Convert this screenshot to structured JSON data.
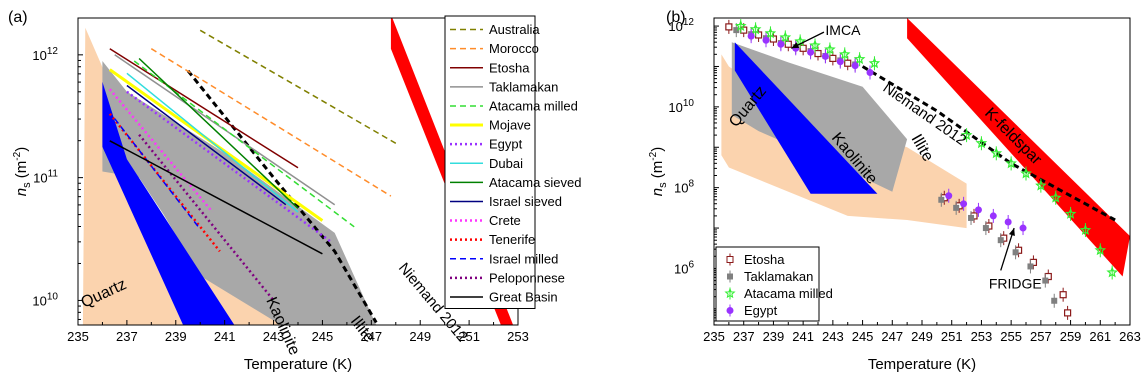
{
  "chart_data": [
    {
      "type": "line",
      "panel_label": "(a)",
      "xlabel": "Temperature (K)",
      "ylabel_main": "n",
      "ylabel_sub": "s",
      "ylabel_unit": "(m",
      "ylabel_exp": "-2",
      "ylabel_close": ")",
      "xlim": [
        235,
        253
      ],
      "ylim_log10": [
        9.8,
        12.3
      ],
      "x_ticks": [
        "235",
        "237",
        "239",
        "241",
        "243",
        "245",
        "247",
        "249",
        "251",
        "253"
      ],
      "y_ticks": [
        {
          "label": "10",
          "exp": "10",
          "value": 10
        },
        {
          "label": "10",
          "exp": "11",
          "value": 11
        },
        {
          "label": "10",
          "exp": "12",
          "value": 12
        }
      ],
      "regions": [
        {
          "name": "Quartz",
          "color": "#fbd3ae",
          "label": "Quartz",
          "polygon": [
            [
              235.2,
              9.8
            ],
            [
              235.3,
              12.22
            ],
            [
              236.0,
              11.9
            ],
            [
              236.5,
              11.1
            ],
            [
              238.5,
              10.3
            ],
            [
              242.0,
              10.2
            ],
            [
              245.5,
              9.95
            ],
            [
              246.8,
              9.8
            ]
          ]
        },
        {
          "name": "Illite",
          "color": "#a8a8a8",
          "label": "Illite",
          "polygon": [
            [
              236.0,
              11.95
            ],
            [
              237.0,
              11.7
            ],
            [
              241.0,
              11.2
            ],
            [
              245.5,
              10.55
            ],
            [
              247.2,
              9.8
            ],
            [
              243.3,
              9.8
            ],
            [
              240.0,
              10.2
            ],
            [
              238.5,
              10.7
            ],
            [
              237.5,
              11.0
            ],
            [
              236.0,
              11.05
            ]
          ]
        },
        {
          "name": "Kaolinite",
          "color": "#0000ff",
          "label": "Kaolinite",
          "polygon": [
            [
              236.0,
              11.78
            ],
            [
              237.0,
              11.15
            ],
            [
              241.4,
              9.8
            ],
            [
              239.3,
              9.8
            ],
            [
              236.0,
              11.25
            ]
          ]
        },
        {
          "name": "K-feldspar",
          "color": "#ff0000",
          "label": "K-feldspar",
          "polygon": [
            [
              247.8,
              12.33
            ],
            [
              252.8,
              9.8
            ],
            [
              252.3,
              9.8
            ],
            [
              247.8,
              12.05
            ]
          ]
        }
      ],
      "niemand": {
        "label": "Niemand 2012",
        "points": [
          [
            239.5,
            11.87
          ],
          [
            243.0,
            11.0
          ],
          [
            245.5,
            10.4
          ],
          [
            247.2,
            9.82
          ]
        ]
      },
      "series": [
        {
          "name": "Australia",
          "color": "#808000",
          "dash": "6,4",
          "width": 1.5,
          "points": [
            [
              240,
              12.2
            ],
            [
              248,
              11.28
            ]
          ]
        },
        {
          "name": "Morocco",
          "color": "#ff8c2a",
          "dash": "6,4",
          "width": 1.5,
          "points": [
            [
              238,
              12.05
            ],
            [
              247.8,
              10.85
            ]
          ]
        },
        {
          "name": "Etosha",
          "color": "#800000",
          "dash": "",
          "width": 1.5,
          "points": [
            [
              236.3,
              12.05
            ],
            [
              244,
              11.08
            ]
          ]
        },
        {
          "name": "Taklamakan",
          "color": "#909090",
          "dash": "",
          "width": 1.5,
          "points": [
            [
              236.5,
              12.0
            ],
            [
              245.5,
              10.78
            ]
          ]
        },
        {
          "name": "Atacama milled",
          "color": "#33dd33",
          "dash": "6,4",
          "width": 1.5,
          "points": [
            [
              237.3,
              11.95
            ],
            [
              246.3,
              10.6
            ]
          ]
        },
        {
          "name": "Mojave",
          "color": "#ffff00",
          "dash": "",
          "width": 3,
          "points": [
            [
              236.3,
              11.88
            ],
            [
              245,
              10.65
            ]
          ]
        },
        {
          "name": "Egypt",
          "color": "#9933ff",
          "dash": "2,3",
          "width": 2.5,
          "points": [
            [
              237,
              11.7
            ],
            [
              245.4,
              10.47
            ]
          ]
        },
        {
          "name": "Dubai",
          "color": "#33dddd",
          "dash": "",
          "width": 1.5,
          "points": [
            [
              237,
              11.85
            ],
            [
              244,
              10.72
            ]
          ]
        },
        {
          "name": "Atacama sieved",
          "color": "#008000",
          "dash": "",
          "width": 1.5,
          "points": [
            [
              237.5,
              11.97
            ],
            [
              244,
              10.75
            ]
          ]
        },
        {
          "name": "Israel sieved",
          "color": "#000080",
          "dash": "",
          "width": 1.5,
          "points": [
            [
              237,
              11.75
            ],
            [
              243.5,
              10.78
            ]
          ]
        },
        {
          "name": "Crete",
          "color": "#ff33ff",
          "dash": "2,3",
          "width": 2.5,
          "points": [
            [
              236.3,
              11.72
            ],
            [
              240.5,
              10.72
            ]
          ]
        },
        {
          "name": "Tenerife",
          "color": "#ff0000",
          "dash": "2,3",
          "width": 2.5,
          "points": [
            [
              236.3,
              11.52
            ],
            [
              240.8,
              10.4
            ]
          ]
        },
        {
          "name": "Israel milled",
          "color": "#0000ff",
          "dash": "6,4",
          "width": 1.5,
          "points": [
            [
              236.5,
              11.48
            ],
            [
              240,
              10.58
            ]
          ]
        },
        {
          "name": "Peloponnese",
          "color": "#800080",
          "dash": "2,3",
          "width": 2.5,
          "points": [
            [
              237.5,
              11.35
            ],
            [
              243,
              10.0
            ]
          ]
        },
        {
          "name": "Great Basin",
          "color": "#000000",
          "dash": "",
          "width": 1.5,
          "points": [
            [
              236.3,
              11.3
            ],
            [
              245,
              10.38
            ]
          ]
        }
      ]
    },
    {
      "type": "scatter",
      "panel_label": "(b)",
      "xlabel": "Temperature (K)",
      "ylabel_main": "n",
      "ylabel_sub": "s",
      "ylabel_unit": "(m",
      "ylabel_exp": "-2",
      "ylabel_close": ")",
      "xlim": [
        235,
        263
      ],
      "ylim_log10": [
        4.6,
        12.2
      ],
      "x_ticks": [
        "235",
        "237",
        "239",
        "241",
        "243",
        "245",
        "247",
        "249",
        "251",
        "253",
        "255",
        "257",
        "259",
        "261",
        "263"
      ],
      "y_ticks": [
        {
          "label": "10",
          "exp": "6",
          "value": 6
        },
        {
          "label": "10",
          "exp": "8",
          "value": 8
        },
        {
          "label": "10",
          "exp": "10",
          "value": 10
        },
        {
          "label": "10",
          "exp": "12",
          "value": 12
        }
      ],
      "regions": [
        {
          "name": "Quartz",
          "color": "#fbd3ae",
          "label": "Quartz",
          "polygon": [
            [
              235.5,
              11.3
            ],
            [
              236.0,
              11.0
            ],
            [
              240.0,
              10.0
            ],
            [
              248.0,
              9.0
            ],
            [
              252.0,
              8.1
            ],
            [
              252.0,
              7.0
            ],
            [
              248.0,
              7.2
            ],
            [
              244.0,
              7.3
            ],
            [
              236.0,
              8.5
            ],
            [
              235.5,
              8.8
            ]
          ]
        },
        {
          "name": "Illite",
          "color": "#a8a8a8",
          "label": "Illite",
          "polygon": [
            [
              236.2,
              11.6
            ],
            [
              240.0,
              11.1
            ],
            [
              245.0,
              10.5
            ],
            [
              248.0,
              9.2
            ],
            [
              247.0,
              7.9
            ],
            [
              243.0,
              8.6
            ],
            [
              238.0,
              9.4
            ],
            [
              236.2,
              9.8
            ]
          ]
        },
        {
          "name": "Kaolinite",
          "color": "#0000ff",
          "label": "Kaolinite",
          "polygon": [
            [
              236.4,
              11.6
            ],
            [
              246.0,
              7.85
            ],
            [
              241.5,
              7.85
            ],
            [
              236.4,
              10.9
            ]
          ]
        },
        {
          "name": "K-feldspar",
          "color": "#ff0000",
          "label": "K-feldspar",
          "polygon": [
            [
              248.0,
              12.2
            ],
            [
              263.0,
              6.8
            ],
            [
              262.5,
              5.8
            ],
            [
              248.0,
              11.7
            ]
          ]
        }
      ],
      "niemand": {
        "label": "Niemand 2012",
        "points": [
          [
            245,
            11.0
          ],
          [
            250,
            9.9
          ],
          [
            255,
            8.6
          ],
          [
            262,
            7.2
          ]
        ]
      },
      "annotations": [
        {
          "text": "IMCA",
          "at": [
            242.5,
            11.78
          ],
          "arrow_from": [
            242.4,
            11.85
          ],
          "arrow_to": [
            240.2,
            11.45
          ]
        },
        {
          "text": "FRIDGE",
          "at": [
            253.5,
            5.5
          ],
          "arrow_from": [
            254.3,
            5.95
          ],
          "arrow_to": [
            255.2,
            7.0
          ]
        }
      ],
      "series": [
        {
          "name": "Etosha",
          "color": "#8b1a1a",
          "marker": "square-open",
          "points": [
            [
              236,
              11.98
            ],
            [
              237,
              11.9
            ],
            [
              238,
              11.78
            ],
            [
              239,
              11.68
            ],
            [
              240,
              11.55
            ],
            [
              241,
              11.45
            ],
            [
              242,
              11.32
            ],
            [
              243,
              11.2
            ],
            [
              244,
              11.08
            ],
            [
              250.5,
              7.75
            ],
            [
              251.5,
              7.55
            ],
            [
              252.5,
              7.3
            ],
            [
              253.5,
              7.05
            ],
            [
              254.5,
              6.75
            ],
            [
              255.5,
              6.45
            ],
            [
              256.5,
              6.15
            ],
            [
              257.5,
              5.8
            ],
            [
              258.5,
              5.35
            ],
            [
              258.8,
              4.9
            ]
          ]
        },
        {
          "name": "Taklamakan",
          "color": "#808080",
          "marker": "square",
          "points": [
            [
              236.5,
              11.9
            ],
            [
              237.5,
              11.8
            ],
            [
              238.5,
              11.7
            ],
            [
              239.5,
              11.58
            ],
            [
              240.5,
              11.48
            ],
            [
              241.5,
              11.38
            ],
            [
              242.5,
              11.26
            ],
            [
              243.5,
              11.15
            ],
            [
              244.5,
              11.05
            ],
            [
              250.3,
              7.7
            ],
            [
              251.3,
              7.5
            ],
            [
              252.3,
              7.25
            ],
            [
              253.3,
              7.0
            ],
            [
              254.3,
              6.7
            ],
            [
              255.3,
              6.4
            ],
            [
              256.3,
              6.05
            ],
            [
              257.3,
              5.7
            ],
            [
              257.9,
              5.2
            ]
          ]
        },
        {
          "name": "Atacama milled",
          "color": "#33ee33",
          "marker": "star-open",
          "points": [
            [
              236.8,
              12.0
            ],
            [
              237.8,
              11.92
            ],
            [
              238.8,
              11.82
            ],
            [
              239.8,
              11.72
            ],
            [
              240.8,
              11.62
            ],
            [
              241.8,
              11.52
            ],
            [
              242.8,
              11.42
            ],
            [
              243.8,
              11.3
            ],
            [
              244.8,
              11.18
            ],
            [
              245.8,
              11.08
            ],
            [
              252,
              9.3
            ],
            [
              253,
              9.1
            ],
            [
              254,
              8.85
            ],
            [
              255,
              8.6
            ],
            [
              256,
              8.35
            ],
            [
              257,
              8.05
            ],
            [
              258,
              7.75
            ],
            [
              259,
              7.35
            ],
            [
              260,
              6.95
            ],
            [
              261,
              6.45
            ],
            [
              261.8,
              5.9
            ]
          ]
        },
        {
          "name": "Egypt",
          "color": "#9933ff",
          "marker": "circle",
          "points": [
            [
              237.5,
              11.75
            ],
            [
              238.5,
              11.65
            ],
            [
              239.5,
              11.55
            ],
            [
              240.5,
              11.45
            ],
            [
              241.5,
              11.35
            ],
            [
              242.5,
              11.25
            ],
            [
              243.5,
              11.12
            ],
            [
              244.5,
              11.02
            ],
            [
              245.5,
              10.85
            ],
            [
              250.8,
              7.8
            ],
            [
              251.8,
              7.6
            ],
            [
              252.8,
              7.45
            ],
            [
              253.8,
              7.3
            ],
            [
              254.8,
              7.15
            ],
            [
              255.8,
              7.0
            ]
          ]
        }
      ]
    }
  ]
}
